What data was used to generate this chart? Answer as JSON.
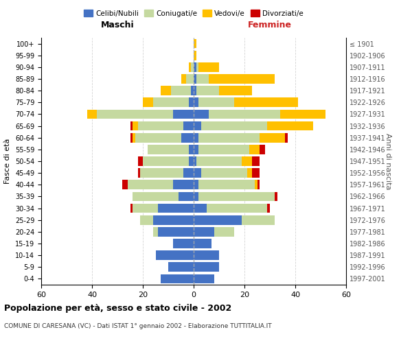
{
  "age_groups": [
    "0-4",
    "5-9",
    "10-14",
    "15-19",
    "20-24",
    "25-29",
    "30-34",
    "35-39",
    "40-44",
    "45-49",
    "50-54",
    "55-59",
    "60-64",
    "65-69",
    "70-74",
    "75-79",
    "80-84",
    "85-89",
    "90-94",
    "95-99",
    "100+"
  ],
  "birth_years": [
    "1997-2001",
    "1992-1996",
    "1987-1991",
    "1982-1986",
    "1977-1981",
    "1972-1976",
    "1967-1971",
    "1962-1966",
    "1957-1961",
    "1952-1956",
    "1947-1951",
    "1942-1946",
    "1937-1941",
    "1932-1936",
    "1927-1931",
    "1922-1926",
    "1917-1921",
    "1912-1916",
    "1907-1911",
    "1902-1906",
    "≤ 1901"
  ],
  "males": {
    "celibe": [
      13,
      10,
      15,
      8,
      14,
      16,
      14,
      6,
      8,
      4,
      2,
      2,
      5,
      4,
      8,
      2,
      1,
      0,
      0,
      0,
      0
    ],
    "coniugato": [
      0,
      0,
      0,
      0,
      2,
      5,
      10,
      18,
      18,
      17,
      18,
      16,
      18,
      18,
      30,
      14,
      8,
      3,
      1,
      0,
      0
    ],
    "vedovo": [
      0,
      0,
      0,
      0,
      0,
      0,
      0,
      0,
      0,
      0,
      0,
      0,
      1,
      2,
      4,
      4,
      4,
      2,
      1,
      0,
      0
    ],
    "divorziato": [
      0,
      0,
      0,
      0,
      0,
      0,
      1,
      0,
      2,
      1,
      2,
      0,
      1,
      1,
      0,
      0,
      0,
      0,
      0,
      0,
      0
    ]
  },
  "females": {
    "nubile": [
      8,
      10,
      10,
      7,
      8,
      19,
      5,
      2,
      2,
      3,
      1,
      2,
      2,
      3,
      6,
      2,
      1,
      1,
      1,
      0,
      0
    ],
    "coniugata": [
      0,
      0,
      0,
      0,
      8,
      13,
      24,
      30,
      22,
      18,
      18,
      20,
      24,
      26,
      28,
      14,
      9,
      5,
      1,
      0,
      0
    ],
    "vedova": [
      0,
      0,
      0,
      0,
      0,
      0,
      0,
      0,
      1,
      2,
      4,
      4,
      10,
      18,
      18,
      25,
      13,
      26,
      8,
      1,
      1
    ],
    "divorziata": [
      0,
      0,
      0,
      0,
      0,
      0,
      1,
      1,
      1,
      3,
      3,
      2,
      1,
      0,
      0,
      0,
      0,
      0,
      0,
      0,
      0
    ]
  },
  "colors": {
    "celibe": "#4472c4",
    "coniugato": "#c5d9a0",
    "vedovo": "#ffc000",
    "divorziato": "#cc0000"
  },
  "xlim": [
    -60,
    60
  ],
  "xlabel_left": "Maschi",
  "xlabel_right": "Femmine",
  "ylabel_left": "Fasce di età",
  "ylabel_right": "Anni di nascita",
  "title": "Popolazione per età, sesso e stato civile - 2002",
  "subtitle": "COMUNE DI CARESANA (VC) - Dati ISTAT 1° gennaio 2002 - Elaborazione TUTTITALIA.IT",
  "legend_labels": [
    "Celibi/Nubili",
    "Coniugati/e",
    "Vedovi/e",
    "Divorziati/e"
  ],
  "legend_colors": [
    "#4472c4",
    "#c5d9a0",
    "#ffc000",
    "#cc0000"
  ],
  "tick_positions": [
    -60,
    -40,
    -20,
    0,
    20,
    40,
    60
  ],
  "tick_labels": [
    "60",
    "40",
    "20",
    "0",
    "20",
    "40",
    "60"
  ],
  "bg_color": "#ffffff"
}
